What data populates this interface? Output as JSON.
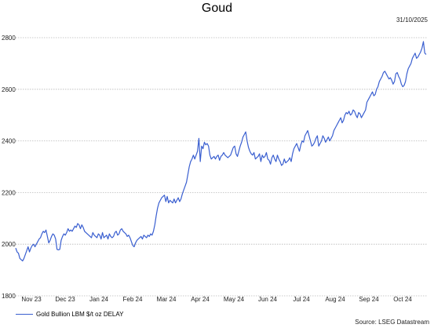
{
  "chart_data": {
    "type": "line",
    "title": "Goud",
    "date_label": "31/10/2025",
    "source": "Source: LSEG Datastream",
    "ylim": [
      1800,
      2800
    ],
    "y_ticks": [
      1800,
      2000,
      2200,
      2400,
      2600,
      2800
    ],
    "x_tick_labels": [
      "Nov 23",
      "Dec 23",
      "Jan 24",
      "Feb 24",
      "Mar 24",
      "Apr 24",
      "May 24",
      "Jun 24",
      "Jul 24",
      "Aug 24",
      "Sep 24",
      "Oct 24"
    ],
    "grid": "horizontal",
    "legend_position": "bottom-left",
    "colors": {
      "line": "#3a5fd0",
      "grid": "#b8b8b8"
    },
    "series": [
      {
        "name": "Gold Bullion LBM $/t oz DELAY",
        "values": [
          1985,
          1970,
          1965,
          1945,
          1940,
          1935,
          1945,
          1960,
          1975,
          1990,
          1970,
          1985,
          1995,
          2000,
          1990,
          2000,
          2010,
          2020,
          2025,
          2040,
          2050,
          2045,
          2055,
          2030,
          2005,
          2015,
          2030,
          2040,
          2035,
          2020,
          1980,
          1978,
          1980,
          2015,
          2030,
          2040,
          2035,
          2045,
          2060,
          2050,
          2055,
          2050,
          2060,
          2070,
          2065,
          2080,
          2075,
          2060,
          2075,
          2065,
          2050,
          2045,
          2040,
          2035,
          2030,
          2025,
          2045,
          2035,
          2030,
          2025,
          2040,
          2035,
          2020,
          2045,
          2025,
          2030,
          2035,
          2020,
          2040,
          2030,
          2025,
          2030,
          2045,
          2050,
          2035,
          2040,
          2055,
          2060,
          2050,
          2045,
          2040,
          2030,
          2035,
          2025,
          2010,
          1995,
          1990,
          2005,
          2015,
          2020,
          2025,
          2030,
          2020,
          2035,
          2030,
          2025,
          2035,
          2030,
          2040,
          2035,
          2050,
          2075,
          2110,
          2140,
          2160,
          2170,
          2180,
          2185,
          2190,
          2165,
          2185,
          2160,
          2170,
          2165,
          2160,
          2175,
          2160,
          2170,
          2180,
          2165,
          2175,
          2195,
          2210,
          2225,
          2240,
          2270,
          2300,
          2320,
          2330,
          2345,
          2330,
          2345,
          2360,
          2410,
          2320,
          2380,
          2370,
          2395,
          2385,
          2390,
          2380,
          2345,
          2330,
          2335,
          2340,
          2330,
          2340,
          2345,
          2325,
          2340,
          2345,
          2355,
          2345,
          2340,
          2335,
          2340,
          2345,
          2360,
          2375,
          2380,
          2350,
          2340,
          2360,
          2380,
          2395,
          2415,
          2425,
          2435,
          2400,
          2375,
          2360,
          2350,
          2345,
          2355,
          2330,
          2335,
          2340,
          2350,
          2320,
          2345,
          2335,
          2340,
          2355,
          2330,
          2325,
          2310,
          2335,
          2345,
          2330,
          2320,
          2345,
          2330,
          2320,
          2305,
          2310,
          2330,
          2315,
          2320,
          2325,
          2335,
          2320,
          2350,
          2370,
          2380,
          2390,
          2375,
          2360,
          2385,
          2400,
          2395,
          2420,
          2430,
          2440,
          2420,
          2400,
          2380,
          2385,
          2395,
          2410,
          2420,
          2380,
          2390,
          2400,
          2420,
          2410,
          2395,
          2405,
          2415,
          2400,
          2410,
          2420,
          2440,
          2450,
          2460,
          2470,
          2480,
          2490,
          2470,
          2480,
          2500,
          2510,
          2505,
          2515,
          2500,
          2505,
          2520,
          2515,
          2500,
          2490,
          2510,
          2505,
          2490,
          2500,
          2510,
          2520,
          2550,
          2560,
          2570,
          2580,
          2590,
          2575,
          2580,
          2600,
          2610,
          2630,
          2640,
          2650,
          2665,
          2670,
          2660,
          2650,
          2640,
          2645,
          2635,
          2620,
          2630,
          2660,
          2665,
          2650,
          2640,
          2620,
          2610,
          2615,
          2630,
          2660,
          2680,
          2690,
          2700,
          2720,
          2730,
          2740,
          2720,
          2725,
          2735,
          2745,
          2760,
          2785,
          2740,
          2735
        ]
      }
    ]
  }
}
